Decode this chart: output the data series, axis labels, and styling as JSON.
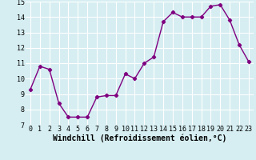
{
  "x": [
    0,
    1,
    2,
    3,
    4,
    5,
    6,
    7,
    8,
    9,
    10,
    11,
    12,
    13,
    14,
    15,
    16,
    17,
    18,
    19,
    20,
    21,
    22,
    23
  ],
  "y": [
    9.3,
    10.8,
    10.6,
    8.4,
    7.5,
    7.5,
    7.5,
    8.8,
    8.9,
    8.9,
    10.3,
    10.0,
    11.0,
    11.4,
    13.7,
    14.3,
    14.0,
    14.0,
    14.0,
    14.7,
    14.8,
    13.8,
    12.2,
    11.1
  ],
  "line_color": "#800080",
  "marker": "D",
  "marker_size": 2.2,
  "bg_color": "#d6eef2",
  "grid_color": "#ffffff",
  "xlabel": "Windchill (Refroidissement éolien,°C)",
  "xlabel_fontsize": 7,
  "xlim": [
    -0.5,
    23.5
  ],
  "ylim": [
    7,
    15
  ],
  "yticks": [
    7,
    8,
    9,
    10,
    11,
    12,
    13,
    14,
    15
  ],
  "xticks": [
    0,
    1,
    2,
    3,
    4,
    5,
    6,
    7,
    8,
    9,
    10,
    11,
    12,
    13,
    14,
    15,
    16,
    17,
    18,
    19,
    20,
    21,
    22,
    23
  ],
  "tick_fontsize": 6,
  "line_width": 1.0
}
